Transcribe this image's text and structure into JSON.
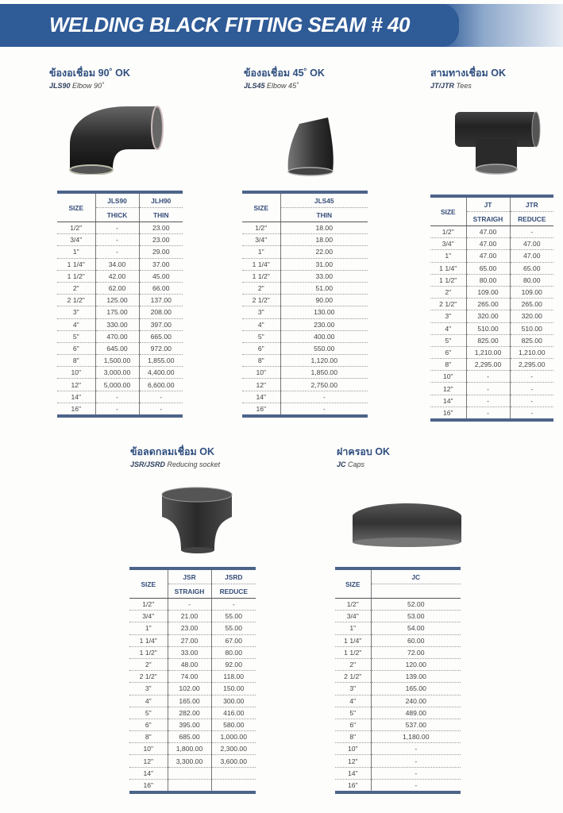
{
  "header": {
    "title": "WELDING BLACK FITTING SEAM # 40"
  },
  "sizes_label": "SIZE",
  "sections": [
    {
      "title_th": "ข้องอเชื่อม 90˚ OK",
      "code": "JLS90",
      "desc": "Elbow 90˚",
      "image": "elbow-90-icon",
      "columns": [
        {
          "code": "JLS90",
          "label": "THICK"
        },
        {
          "code": "JLH90",
          "label": "THIN"
        }
      ],
      "rows": [
        [
          "1/2\"",
          "-",
          "23.00"
        ],
        [
          "3/4\"",
          "-",
          "23.00"
        ],
        [
          "1\"",
          "-",
          "29.00"
        ],
        [
          "1  1/4\"",
          "34.00",
          "37.00"
        ],
        [
          "1  1/2\"",
          "42.00",
          "45.00"
        ],
        [
          "2\"",
          "62.00",
          "66.00"
        ],
        [
          "2  1/2\"",
          "125.00",
          "137.00"
        ],
        [
          "3\"",
          "175.00",
          "208.00"
        ],
        [
          "4\"",
          "330.00",
          "397.00"
        ],
        [
          "5\"",
          "470.00",
          "665.00"
        ],
        [
          "6\"",
          "645.00",
          "972.00"
        ],
        [
          "8\"",
          "1,500.00",
          "1,855.00"
        ],
        [
          "10\"",
          "3,000.00",
          "4,400.00"
        ],
        [
          "12\"",
          "5,000.00",
          "6,600.00"
        ],
        [
          "14\"",
          "-",
          "-"
        ],
        [
          "16\"",
          "-",
          "-"
        ]
      ]
    },
    {
      "title_th": "ข้องอเชื่อม 45˚ OK",
      "code": "JLS45",
      "desc": "Elbow 45˚",
      "image": "elbow-45-icon",
      "columns": [
        {
          "code": "JLS45",
          "label": "THIN"
        }
      ],
      "rows": [
        [
          "1/2\"",
          "18.00"
        ],
        [
          "3/4\"",
          "18.00"
        ],
        [
          "1\"",
          "22.00"
        ],
        [
          "1  1/4\"",
          "31.00"
        ],
        [
          "1  1/2\"",
          "33.00"
        ],
        [
          "2\"",
          "51.00"
        ],
        [
          "2  1/2\"",
          "90.00"
        ],
        [
          "3\"",
          "130.00"
        ],
        [
          "4\"",
          "230.00"
        ],
        [
          "5\"",
          "400.00"
        ],
        [
          "6\"",
          "550.00"
        ],
        [
          "8\"",
          "1,120.00"
        ],
        [
          "10\"",
          "1,850.00"
        ],
        [
          "12\"",
          "2,750.00"
        ],
        [
          "14\"",
          "-"
        ],
        [
          "16\"",
          "-"
        ]
      ]
    },
    {
      "title_th": "สามทางเชื่อม OK",
      "code": "JT/JTR",
      "desc": "Tees",
      "image": "tee-icon",
      "columns": [
        {
          "code": "JT",
          "label": "STRAIGH"
        },
        {
          "code": "JTR",
          "label": "REDUCE"
        }
      ],
      "rows": [
        [
          "1/2\"",
          "47.00",
          "-"
        ],
        [
          "3/4\"",
          "47.00",
          "47.00"
        ],
        [
          "1\"",
          "47.00",
          "47.00"
        ],
        [
          "1  1/4\"",
          "65.00",
          "65.00"
        ],
        [
          "1  1/2\"",
          "80.00",
          "80.00"
        ],
        [
          "2\"",
          "109.00",
          "109.00"
        ],
        [
          "2  1/2\"",
          "265.00",
          "265.00"
        ],
        [
          "3\"",
          "320.00",
          "320.00"
        ],
        [
          "4\"",
          "510.00",
          "510.00"
        ],
        [
          "5\"",
          "825.00",
          "825.00"
        ],
        [
          "6\"",
          "1,210.00",
          "1,210.00"
        ],
        [
          "8\"",
          "2,295.00",
          "2,295.00"
        ],
        [
          "10\"",
          "-",
          "-"
        ],
        [
          "12\"",
          "-",
          "-"
        ],
        [
          "14\"",
          "-",
          "-"
        ],
        [
          "16\"",
          "-",
          "-"
        ]
      ]
    },
    {
      "title_th": "ข้อลดกลมเชื่อม OK",
      "code": "JSR/JSRD",
      "desc": "Reducing socket",
      "image": "reducer-icon",
      "columns": [
        {
          "code": "JSR",
          "label": "STRAIGH"
        },
        {
          "code": "JSRD",
          "label": "REDUCE"
        }
      ],
      "rows": [
        [
          "1/2\"",
          "-",
          "-"
        ],
        [
          "3/4\"",
          "21.00",
          "55.00"
        ],
        [
          "1\"",
          "23.00",
          "55.00"
        ],
        [
          "1  1/4\"",
          "27.00",
          "67.00"
        ],
        [
          "1  1/2\"",
          "33.00",
          "80.00"
        ],
        [
          "2\"",
          "48.00",
          "92.00"
        ],
        [
          "2  1/2\"",
          "74.00",
          "118.00"
        ],
        [
          "3\"",
          "102.00",
          "150.00"
        ],
        [
          "4\"",
          "165.00",
          "300.00"
        ],
        [
          "5\"",
          "282.00",
          "416.00"
        ],
        [
          "6\"",
          "395.00",
          "580.00"
        ],
        [
          "8\"",
          "685.00",
          "1,000.00"
        ],
        [
          "10\"",
          "1,800.00",
          "2,300.00"
        ],
        [
          "12\"",
          "3,300.00",
          "3,600.00"
        ],
        [
          "14\"",
          "",
          ""
        ],
        [
          "16\"",
          "",
          ""
        ]
      ]
    },
    {
      "title_th": "ฝาครอบ OK",
      "code": "JC",
      "desc": "Caps",
      "image": "cap-icon",
      "columns": [
        {
          "code": "JC",
          "label": ""
        }
      ],
      "rows": [
        [
          "1/2\"",
          "52.00"
        ],
        [
          "3/4\"",
          "53.00"
        ],
        [
          "1\"",
          "54.00"
        ],
        [
          "1  1/4\"",
          "60.00"
        ],
        [
          "1  1/2\"",
          "72.00"
        ],
        [
          "2\"",
          "120.00"
        ],
        [
          "2  1/2\"",
          "139.00"
        ],
        [
          "3\"",
          "165.00"
        ],
        [
          "4\"",
          "240.00"
        ],
        [
          "5\"",
          "489.00"
        ],
        [
          "6\"",
          "537.00"
        ],
        [
          "8\"",
          "1,180.00"
        ],
        [
          "10\"",
          "-"
        ],
        [
          "12\"",
          "-"
        ],
        [
          "14\"",
          "-"
        ],
        [
          "16\"",
          "-"
        ]
      ]
    }
  ],
  "colors": {
    "banner": "#2f5b97",
    "heading": "#2f4f7f",
    "table_rule": "#4d6489"
  }
}
